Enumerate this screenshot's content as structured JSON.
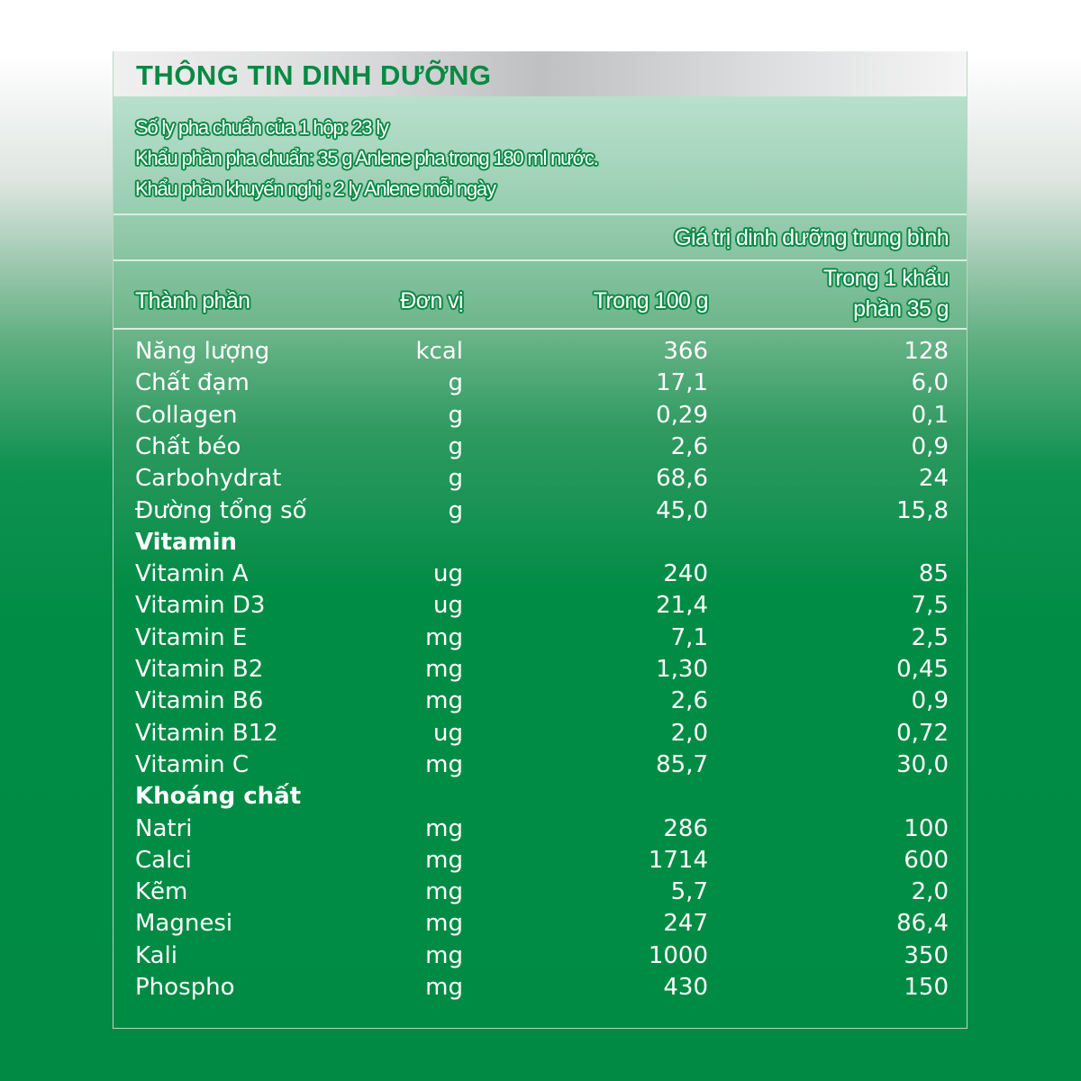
{
  "title": "THÔNG TIN DINH DƯỠNG",
  "info": [
    "Số ly pha chuẩn của 1 hộp: 23 ly",
    "Khẩu phần pha chuẩn: 35 g Anlene pha trong 180 ml nước.",
    "Khẩu phần khuyến nghị : 2 ly Anlene mỗi ngày"
  ],
  "group_header": "Giá trị dinh dưỡng trung bình",
  "headers": {
    "name": "Thành phần",
    "unit": "Đơn vị",
    "per100": "Trong 100 g",
    "perServing1": "Trong 1 khẩu",
    "perServing2": "phần 35 g"
  },
  "colors": {
    "green": "#008c45",
    "outline": "#0a8a45"
  },
  "rows": [
    {
      "name": "Năng lượng",
      "unit": "kcal",
      "per100": "366",
      "perServing": "128"
    },
    {
      "name": "Chất đạm",
      "unit": "g",
      "per100": "17,1",
      "perServing": "6,0"
    },
    {
      "name": "Collagen",
      "unit": "g",
      "per100": "0,29",
      "perServing": "0,1"
    },
    {
      "name": "Chất béo",
      "unit": "g",
      "per100": "2,6",
      "perServing": "0,9"
    },
    {
      "name": "Carbohydrat",
      "unit": "g",
      "per100": "68,6",
      "perServing": "24"
    },
    {
      "name": "Đường tổng số",
      "unit": "g",
      "per100": "45,0",
      "perServing": "15,8"
    },
    {
      "name": "Vitamin",
      "section": true
    },
    {
      "name": "Vitamin A",
      "unit": "ug",
      "per100": "240",
      "perServing": "85"
    },
    {
      "name": "Vitamin D3",
      "unit": "ug",
      "per100": "21,4",
      "perServing": "7,5"
    },
    {
      "name": "Vitamin E",
      "unit": "mg",
      "per100": "7,1",
      "perServing": "2,5"
    },
    {
      "name": "Vitamin B2",
      "unit": "mg",
      "per100": "1,30",
      "perServing": "0,45"
    },
    {
      "name": "Vitamin B6",
      "unit": "mg",
      "per100": "2,6",
      "perServing": "0,9"
    },
    {
      "name": "Vitamin B12",
      "unit": "ug",
      "per100": "2,0",
      "perServing": "0,72"
    },
    {
      "name": "Vitamin C",
      "unit": "mg",
      "per100": "85,7",
      "perServing": "30,0"
    },
    {
      "name": "Khoáng chất",
      "section": true
    },
    {
      "name": "Natri",
      "unit": "mg",
      "per100": "286",
      "perServing": "100"
    },
    {
      "name": "Calci",
      "unit": "mg",
      "per100": "1714",
      "perServing": "600"
    },
    {
      "name": "Kẽm",
      "unit": "mg",
      "per100": "5,7",
      "perServing": "2,0"
    },
    {
      "name": "Magnesi",
      "unit": "mg",
      "per100": "247",
      "perServing": "86,4"
    },
    {
      "name": "Kali",
      "unit": "mg",
      "per100": "1000",
      "perServing": "350"
    },
    {
      "name": "Phospho",
      "unit": "mg",
      "per100": "430",
      "perServing": "150"
    }
  ]
}
